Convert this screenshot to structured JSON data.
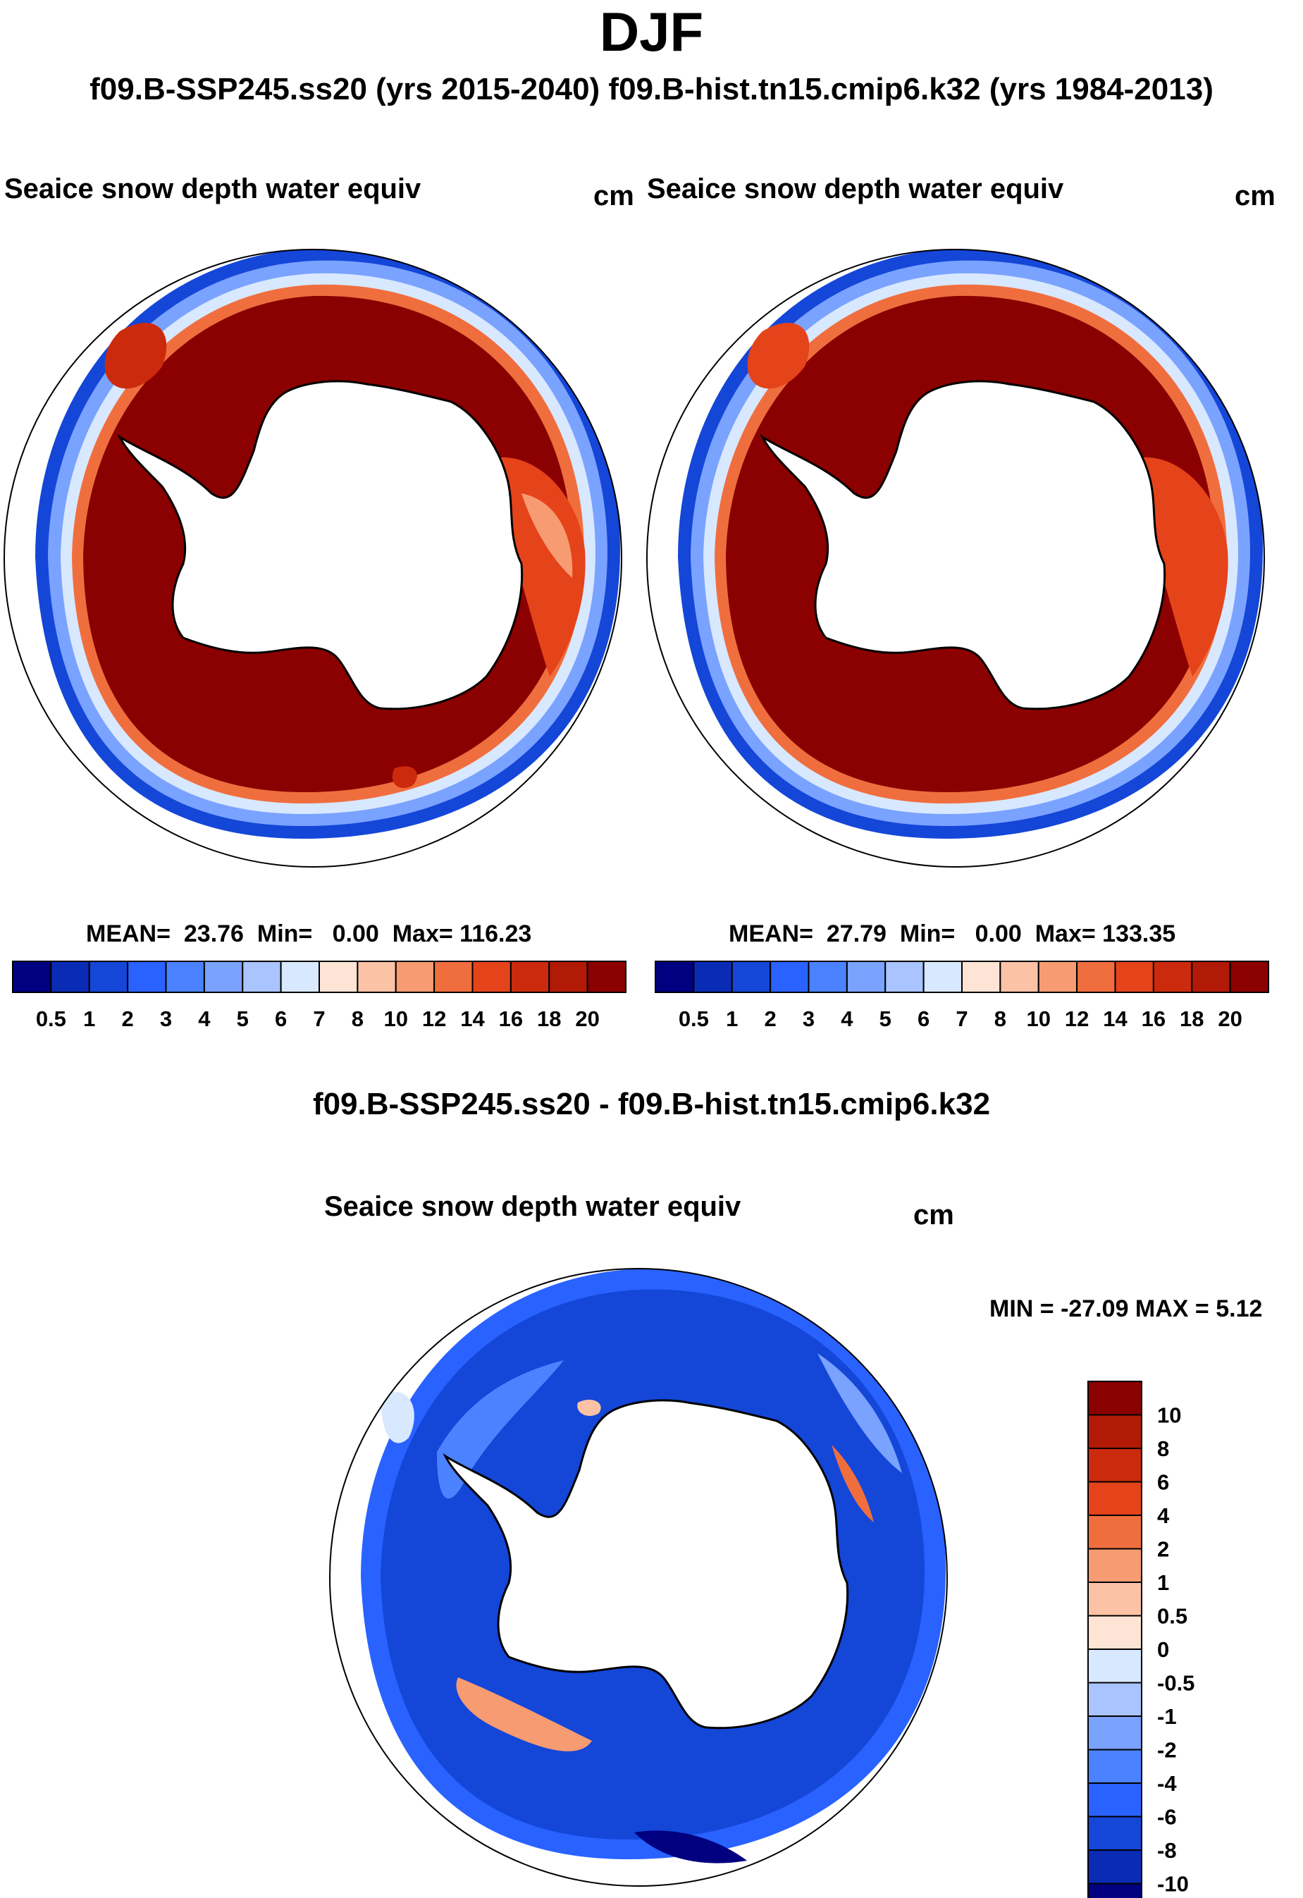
{
  "figure": {
    "season": "DJF",
    "subtitle": "f09.B-SSP245.ss20 (yrs 2015-2040)  f09.B-hist.tn15.cmip6.k32 (yrs 1984-2013)",
    "diff_title": "f09.B-SSP245.ss20 - f09.B-hist.tn15.cmip6.k32"
  },
  "panels": [
    {
      "id": "left",
      "variable": "Seaice snow depth water equiv",
      "units": "cm",
      "stats": {
        "mean_label": "MEAN=",
        "mean": "23.76",
        "min_label": "Min=",
        "min": "0.00",
        "max_label": "Max=",
        "max": "116.23"
      }
    },
    {
      "id": "right",
      "variable": "Seaice snow depth water equiv",
      "units": "cm",
      "stats": {
        "mean_label": "MEAN=",
        "mean": "27.79",
        "min_label": "Min=",
        "min": "0.00",
        "max_label": "Max=",
        "max": "133.35"
      }
    }
  ],
  "diff_panel": {
    "variable": "Seaice snow depth water equiv",
    "units": "cm",
    "min_max_text": "MIN = -27.09 MAX =   5.12"
  },
  "colorbars": {
    "abs_labels": [
      "0.5",
      "1",
      "2",
      "3",
      "4",
      "5",
      "6",
      "7",
      "8",
      "10",
      "12",
      "14",
      "16",
      "18",
      "20"
    ],
    "abs_colors": [
      "#000080",
      "#0a2cb4",
      "#1446d8",
      "#2962ff",
      "#4b82ff",
      "#7aa2ff",
      "#a9c4ff",
      "#d8e8ff",
      "#fde4d4",
      "#fbc2a6",
      "#f79b72",
      "#f06e3e",
      "#e5431a",
      "#cc2a0c",
      "#b11a06",
      "#8b0000"
    ],
    "diff_labels": [
      "10",
      "8",
      "6",
      "4",
      "2",
      "1",
      "0.5",
      "0",
      "-0.5",
      "-1",
      "-2",
      "-4",
      "-6",
      "-8",
      "-10"
    ],
    "diff_colors": [
      "#8b0000",
      "#b11a06",
      "#cc2a0c",
      "#e5431a",
      "#f06e3e",
      "#f79b72",
      "#fbc2a6",
      "#fde4d4",
      "#d8e8ff",
      "#a9c4ff",
      "#7aa2ff",
      "#4b82ff",
      "#2962ff",
      "#1446d8",
      "#0a2cb4",
      "#000080"
    ]
  }
}
